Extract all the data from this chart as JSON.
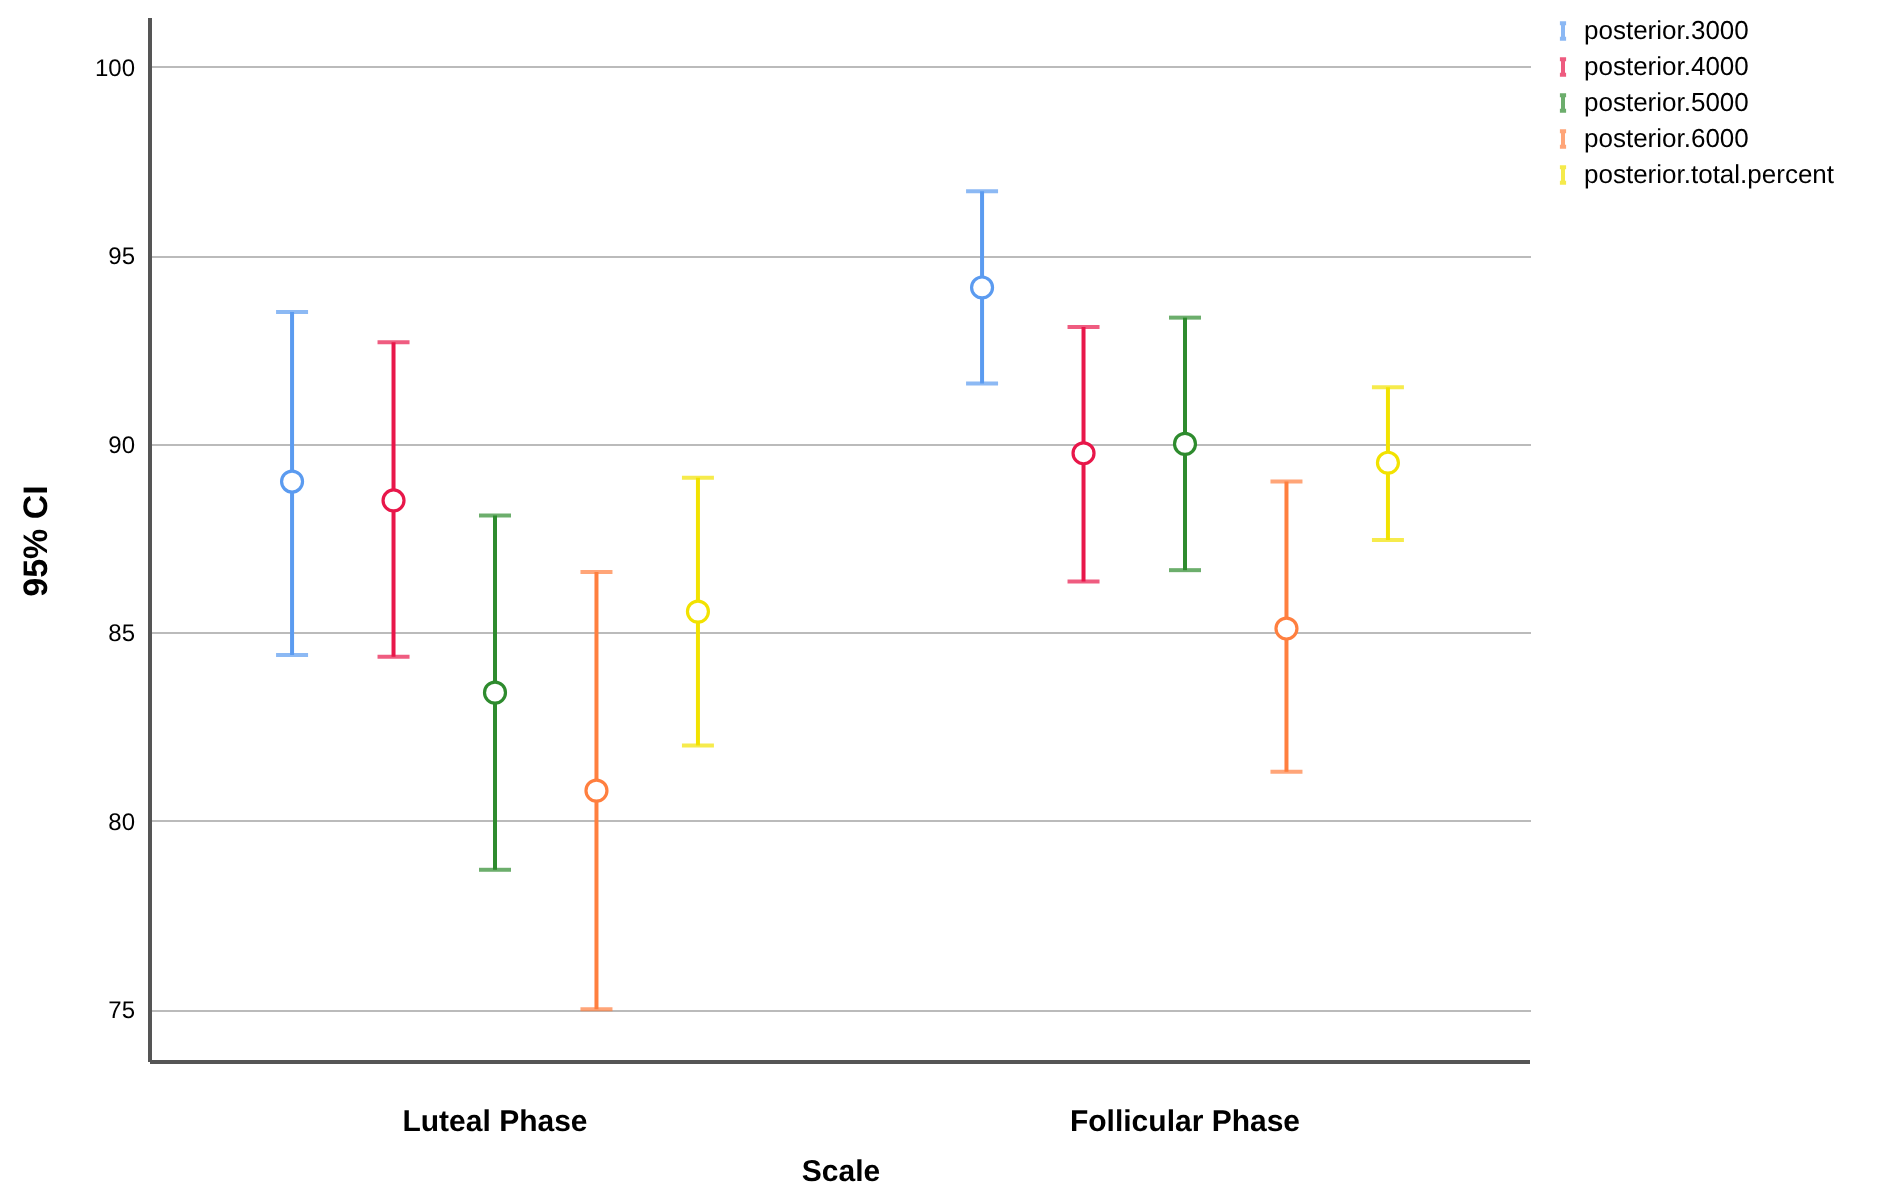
{
  "chart_data": {
    "type": "scatter",
    "xlabel": "Scale",
    "ylabel": "95% CI",
    "categories": [
      "Luteal Phase",
      "Follicular Phase"
    ],
    "series": [
      {
        "name": "posterior.3000",
        "color": "#5b9bf0",
        "values": [
          89.0,
          94.15
        ],
        "errors": [
          [
            84.4,
            93.5
          ],
          [
            91.6,
            96.7
          ]
        ]
      },
      {
        "name": "posterior.4000",
        "color": "#e8174a",
        "values": [
          88.5,
          89.75
        ],
        "errors": [
          [
            84.35,
            92.7
          ],
          [
            86.35,
            93.1
          ]
        ]
      },
      {
        "name": "posterior.5000",
        "color": "#2e8b2e",
        "values": [
          83.4,
          90.0
        ],
        "errors": [
          [
            78.7,
            88.1
          ],
          [
            86.65,
            93.35
          ]
        ]
      },
      {
        "name": "posterior.6000",
        "color": "#ff7f3f",
        "values": [
          80.8,
          85.1
        ],
        "errors": [
          [
            75.0,
            86.6
          ],
          [
            81.3,
            89.0
          ]
        ]
      },
      {
        "name": "posterior.total.percent",
        "color": "#f2e200",
        "values": [
          85.55,
          89.5
        ],
        "errors": [
          [
            82.0,
            89.1
          ],
          [
            87.45,
            91.5
          ]
        ]
      }
    ],
    "ylim": [
      73.6,
      101.3
    ],
    "yticks": [
      75,
      80,
      85,
      90,
      95,
      100
    ],
    "grid": "y",
    "legend": "top right",
    "marker": "circle"
  }
}
